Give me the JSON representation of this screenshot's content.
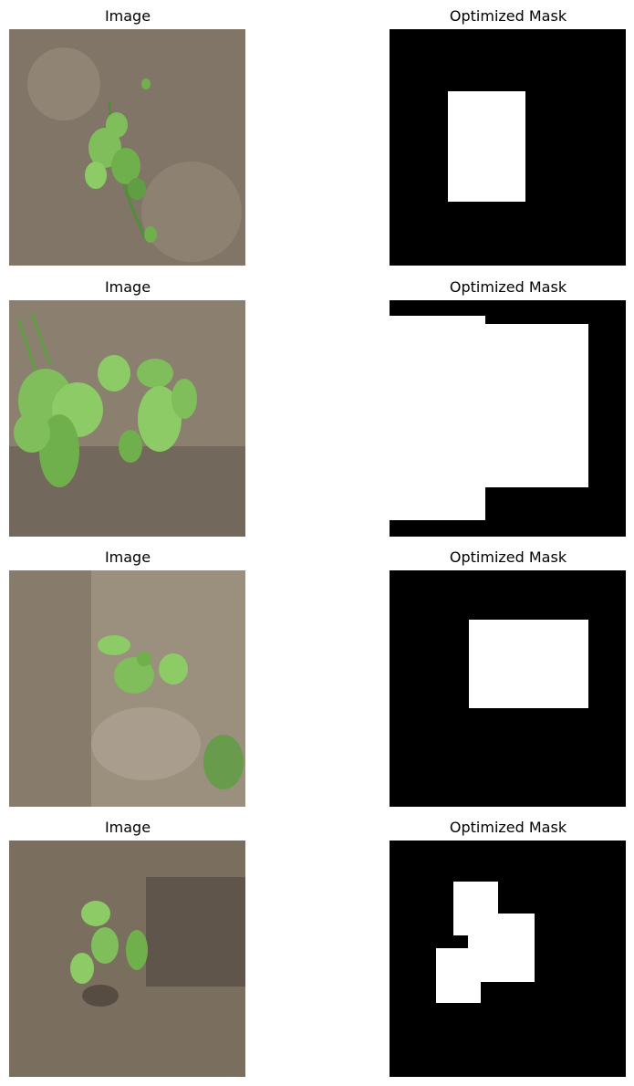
{
  "figure": {
    "rows": [
      {
        "left_title": "Image",
        "right_title": "Optimized Mask"
      },
      {
        "left_title": "Image",
        "right_title": "Optimized Mask"
      },
      {
        "left_title": "Image",
        "right_title": "Optimized Mask"
      },
      {
        "left_title": "Image",
        "right_title": "Optimized Mask"
      }
    ]
  },
  "colors": {
    "soil": "#8b7f6f",
    "soil_dark": "#5a5248",
    "leaf": "#7fbe5a",
    "leaf_dark": "#4f8f38",
    "mask_bg": "#000000",
    "mask_fg": "#ffffff"
  }
}
